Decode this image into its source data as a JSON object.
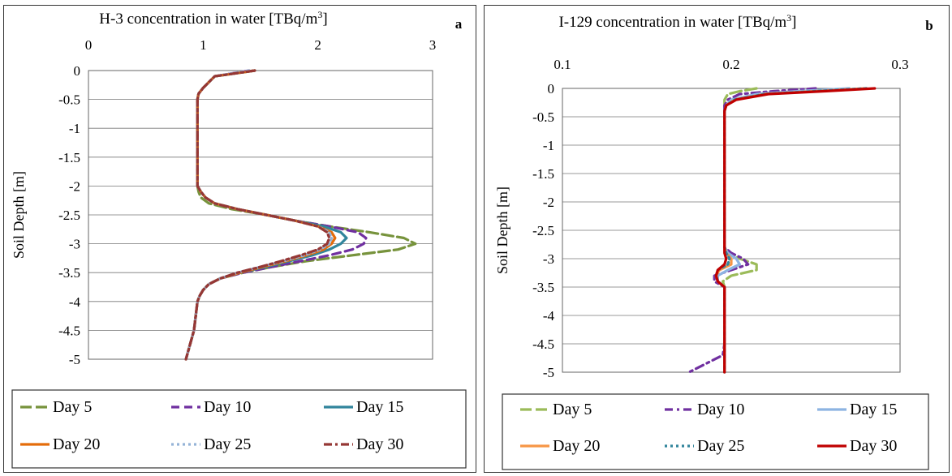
{
  "chart_data": [
    {
      "type": "line",
      "panel_letter": "a",
      "title": "H-3 concentration in water [TBq/m",
      "title_sup": "3",
      "title_tail": "]",
      "ylabel": "Soil Depth [m]",
      "xlim": [
        0,
        3
      ],
      "ylim": [
        -5,
        0
      ],
      "x_ticks": [
        0,
        1,
        2,
        3
      ],
      "x_tick_labels": [
        "0",
        "1",
        "2",
        "3"
      ],
      "y_ticks": [
        0,
        -0.5,
        -1,
        -1.5,
        -2,
        -2.5,
        -3,
        -3.5,
        -4,
        -4.5,
        -5
      ],
      "y_tick_labels": [
        "0",
        "-0.5",
        "-1",
        "-1.5",
        "-2",
        "-2.5",
        "-3",
        "-3.5",
        "-4",
        "-4.5",
        "-5"
      ],
      "grid": "horizontal",
      "legend_position": "bottom",
      "y_points": [
        0,
        -0.1,
        -0.3,
        -0.4,
        -0.5,
        -1.0,
        -1.5,
        -2.0,
        -2.1,
        -2.2,
        -2.3,
        -2.4,
        -2.5,
        -2.6,
        -2.7,
        -2.8,
        -2.9,
        -3.0,
        -3.1,
        -3.2,
        -3.3,
        -3.4,
        -3.5,
        -3.6,
        -3.7,
        -3.8,
        -3.9,
        -4.0,
        -4.5,
        -5.0
      ],
      "series": [
        {
          "name": "Day 5",
          "color": "#77933C",
          "dash": "14,5",
          "x": [
            1.45,
            1.1,
            1.0,
            0.96,
            0.95,
            0.95,
            0.95,
            0.95,
            0.96,
            0.98,
            1.05,
            1.25,
            1.55,
            1.8,
            2.1,
            2.45,
            2.75,
            2.85,
            2.7,
            2.3,
            1.9,
            1.6,
            1.35,
            1.15,
            1.05,
            1.0,
            0.97,
            0.95,
            0.92,
            0.85
          ]
        },
        {
          "name": "Day 10",
          "color": "#7030A0",
          "dash": "10,6",
          "x": [
            1.4,
            1.1,
            1.0,
            0.96,
            0.95,
            0.95,
            0.95,
            0.95,
            0.98,
            1.02,
            1.1,
            1.3,
            1.55,
            1.8,
            2.1,
            2.35,
            2.42,
            2.4,
            2.3,
            2.1,
            1.85,
            1.6,
            1.35,
            1.15,
            1.05,
            1.0,
            0.97,
            0.95,
            0.92,
            0.85
          ]
        },
        {
          "name": "Day 15",
          "color": "#31859C",
          "dash": "",
          "x": [
            1.45,
            1.1,
            1.0,
            0.96,
            0.95,
            0.95,
            0.95,
            0.95,
            0.98,
            1.02,
            1.1,
            1.3,
            1.55,
            1.8,
            2.05,
            2.2,
            2.25,
            2.2,
            2.1,
            1.95,
            1.75,
            1.55,
            1.32,
            1.15,
            1.05,
            1.0,
            0.97,
            0.95,
            0.92,
            0.85
          ]
        },
        {
          "name": "Day 20",
          "color": "#E46C0A",
          "dash": "",
          "x": [
            1.45,
            1.1,
            1.0,
            0.96,
            0.95,
            0.95,
            0.95,
            0.95,
            0.98,
            1.02,
            1.1,
            1.3,
            1.55,
            1.8,
            2.0,
            2.12,
            2.15,
            2.12,
            2.05,
            1.9,
            1.72,
            1.52,
            1.32,
            1.15,
            1.05,
            1.0,
            0.97,
            0.95,
            0.92,
            0.85
          ]
        },
        {
          "name": "Day 25",
          "color": "#95B3D7",
          "dash": "3,4",
          "x": [
            1.4,
            1.1,
            1.0,
            0.96,
            0.95,
            0.95,
            0.95,
            0.95,
            0.98,
            1.02,
            1.1,
            1.3,
            1.55,
            1.8,
            2.0,
            2.1,
            2.12,
            2.1,
            2.02,
            1.88,
            1.7,
            1.5,
            1.3,
            1.15,
            1.05,
            1.0,
            0.97,
            0.95,
            0.92,
            0.85
          ]
        },
        {
          "name": "Day 30",
          "color": "#953735",
          "dash": "10,4,3,4",
          "x": [
            1.45,
            1.1,
            1.0,
            0.96,
            0.95,
            0.95,
            0.95,
            0.95,
            0.98,
            1.02,
            1.1,
            1.3,
            1.55,
            1.8,
            2.0,
            2.08,
            2.1,
            2.08,
            2.0,
            1.85,
            1.68,
            1.5,
            1.3,
            1.15,
            1.05,
            1.0,
            0.97,
            0.95,
            0.92,
            0.85
          ]
        }
      ]
    },
    {
      "type": "line",
      "panel_letter": "b",
      "title": "I-129 concentration in water [TBq/m",
      "title_sup": "3",
      "title_tail": "]",
      "ylabel": "Soil Depth [m]",
      "xlim": [
        0.1,
        0.3
      ],
      "ylim": [
        -5,
        0
      ],
      "x_ticks": [
        0.1,
        0.2,
        0.3
      ],
      "x_tick_labels": [
        "0.1",
        "0.2",
        "0.3"
      ],
      "y_ticks": [
        0,
        -0.5,
        -1,
        -1.5,
        -2,
        -2.5,
        -3,
        -3.5,
        -4,
        -4.5,
        -5
      ],
      "y_tick_labels": [
        "0",
        "-0.5",
        "-1",
        "-1.5",
        "-2",
        "-2.5",
        "-3",
        "-3.5",
        "-4",
        "-4.5",
        "-5"
      ],
      "grid": "horizontal",
      "legend_position": "bottom",
      "y_points": [
        0,
        -0.05,
        -0.1,
        -0.2,
        -0.3,
        -0.4,
        -0.5,
        -1,
        -2,
        -2.8,
        -2.9,
        -3.0,
        -3.1,
        -3.2,
        -3.3,
        -3.4,
        -3.5,
        -4,
        -4.5,
        -4.7,
        -5
      ],
      "series": [
        {
          "name": "Day 5",
          "color": "#9BBB59",
          "dash": "14,5",
          "x": [
            0.215,
            0.205,
            0.198,
            0.196,
            0.196,
            0.196,
            0.196,
            0.196,
            0.196,
            0.196,
            0.198,
            0.205,
            0.215,
            0.215,
            0.2,
            0.195,
            0.196,
            0.196,
            0.196,
            0.196,
            0.196
          ]
        },
        {
          "name": "Day 10",
          "color": "#7030A0",
          "dash": "10,5,3,5",
          "x": [
            0.25,
            0.225,
            0.205,
            0.198,
            0.196,
            0.196,
            0.196,
            0.196,
            0.196,
            0.196,
            0.2,
            0.207,
            0.21,
            0.2,
            0.19,
            0.19,
            0.196,
            0.196,
            0.196,
            0.195,
            0.175
          ]
        },
        {
          "name": "Day 15",
          "color": "#8DB4E2",
          "dash": "",
          "x": [
            0.27,
            0.24,
            0.215,
            0.2,
            0.197,
            0.196,
            0.196,
            0.196,
            0.196,
            0.196,
            0.198,
            0.203,
            0.205,
            0.198,
            0.192,
            0.192,
            0.196,
            0.196,
            0.196,
            0.196,
            0.196
          ]
        },
        {
          "name": "Day 20",
          "color": "#F79646",
          "dash": "",
          "x": [
            0.28,
            0.25,
            0.22,
            0.202,
            0.197,
            0.196,
            0.196,
            0.196,
            0.196,
            0.196,
            0.197,
            0.2,
            0.2,
            0.193,
            0.191,
            0.192,
            0.196,
            0.196,
            0.196,
            0.196,
            0.196
          ]
        },
        {
          "name": "Day 25",
          "color": "#31859C",
          "dash": "3,4",
          "x": [
            0.28,
            0.25,
            0.22,
            0.202,
            0.197,
            0.196,
            0.196,
            0.196,
            0.196,
            0.196,
            0.197,
            0.199,
            0.198,
            0.192,
            0.191,
            0.192,
            0.196,
            0.196,
            0.196,
            0.196,
            0.196
          ]
        },
        {
          "name": "Day 30",
          "color": "#C00000",
          "dash": "",
          "x": [
            0.285,
            0.255,
            0.222,
            0.203,
            0.197,
            0.196,
            0.196,
            0.196,
            0.196,
            0.196,
            0.196,
            0.197,
            0.196,
            0.192,
            0.191,
            0.192,
            0.196,
            0.196,
            0.196,
            0.196,
            0.196
          ]
        }
      ]
    }
  ]
}
